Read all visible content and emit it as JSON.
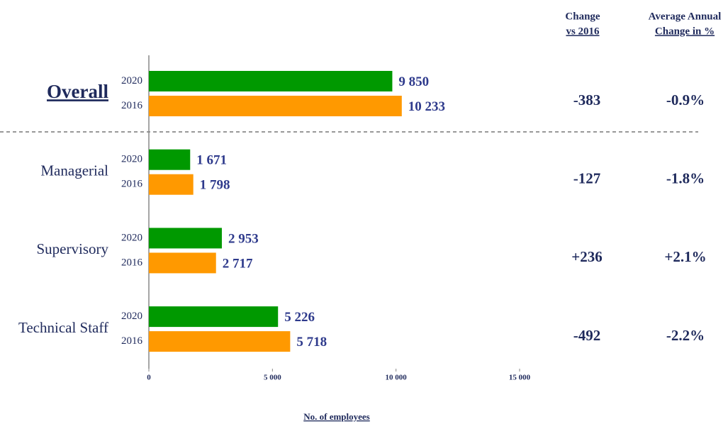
{
  "chart_data": {
    "type": "bar",
    "orientation": "horizontal",
    "categories": [
      "Overall",
      "Managerial",
      "Supervisory",
      "Technical Staff"
    ],
    "series": [
      {
        "name": "2020",
        "color": "#009900",
        "values": [
          9850,
          1671,
          2953,
          5226
        ],
        "value_labels": [
          "9 850",
          "1 671",
          "2 953",
          "5 226"
        ]
      },
      {
        "name": "2016",
        "color": "#ff9900",
        "values": [
          10233,
          1798,
          2717,
          5718
        ],
        "value_labels": [
          "10 233",
          "1 798",
          "2 717",
          "5 718"
        ]
      }
    ],
    "xlim": [
      0,
      15000
    ],
    "xticks": [
      0,
      {
        "value": 5000,
        "label": "5 000"
      },
      {
        "value": 10000,
        "label": "10 000"
      },
      {
        "value": 15000,
        "label": "15 000"
      }
    ],
    "x_label": "No. of employees",
    "columns": [
      {
        "header": [
          "Change",
          "vs 2016"
        ],
        "values": [
          -383,
          -127,
          236,
          -492
        ],
        "value_labels": [
          "-383",
          "-127",
          "+236",
          "-492"
        ]
      },
      {
        "header": [
          "Average Annual",
          "Change in %"
        ],
        "values": [
          -0.9,
          -1.8,
          2.1,
          -2.2
        ],
        "value_labels": [
          "-0.9%",
          "-1.8%",
          "+2.1%",
          "-2.2%"
        ]
      }
    ]
  }
}
